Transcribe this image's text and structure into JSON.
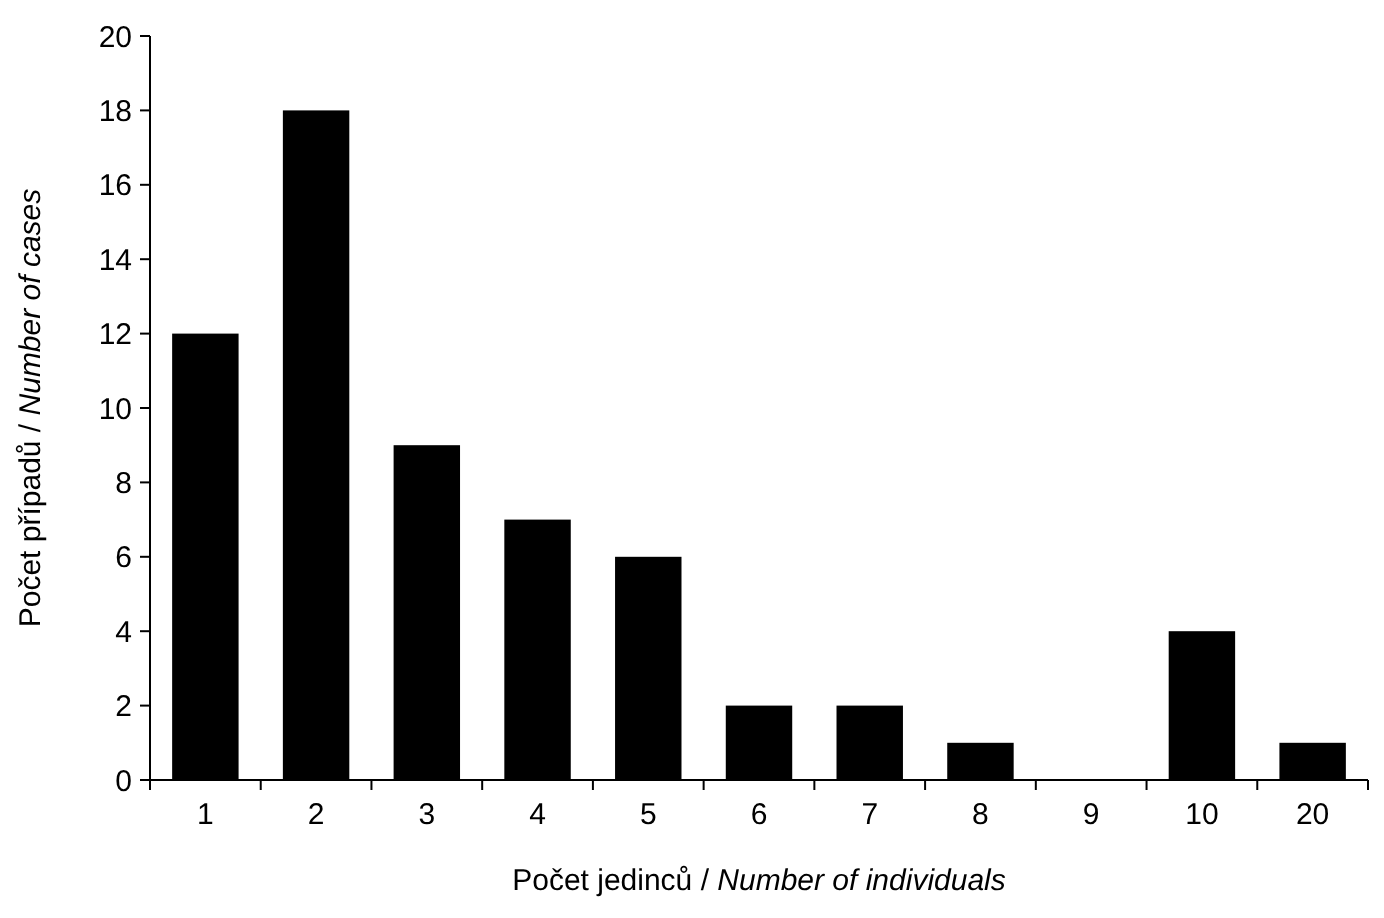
{
  "chart_data": {
    "type": "bar",
    "xlabel": "Počet jedinců / Number of individuals",
    "ylabel": "Počet případů / Number of cases",
    "categories": [
      "1",
      "2",
      "3",
      "4",
      "5",
      "6",
      "7",
      "8",
      "9",
      "10",
      "20"
    ],
    "values": [
      12,
      18,
      9,
      7,
      6,
      2,
      2,
      1,
      0,
      4,
      1
    ],
    "color": "#000000",
    "ylim": [
      0,
      20
    ],
    "yticks": [
      0,
      2,
      4,
      6,
      8,
      10,
      12,
      14,
      16,
      18,
      20
    ],
    "grid": false
  }
}
